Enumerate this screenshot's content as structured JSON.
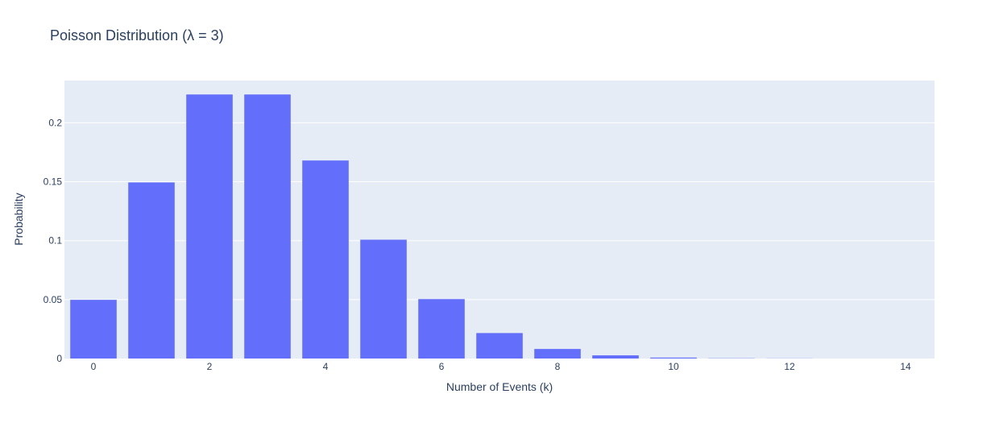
{
  "chart_data": {
    "type": "bar",
    "title": "Poisson Distribution (λ = 3)",
    "xlabel": "Number of Events (k)",
    "ylabel": "Probability",
    "categories": [
      0,
      1,
      2,
      3,
      4,
      5,
      6,
      7,
      8,
      9,
      10,
      11,
      12,
      13,
      14
    ],
    "values": [
      0.0498,
      0.1494,
      0.224,
      0.224,
      0.168,
      0.1008,
      0.0504,
      0.0216,
      0.0081,
      0.0027,
      0.0008,
      0.0002,
      0.0001,
      0.0,
      0.0
    ],
    "xticks": [
      "0",
      "2",
      "4",
      "6",
      "8",
      "10",
      "12",
      "14"
    ],
    "xtick_values": [
      0,
      2,
      4,
      6,
      8,
      10,
      12,
      14
    ],
    "yticks": [
      "0",
      "0.05",
      "0.1",
      "0.15",
      "0.2"
    ],
    "ytick_values": [
      0,
      0.05,
      0.1,
      0.15,
      0.2
    ],
    "xlim": [
      -0.5,
      14.5
    ],
    "ylim": [
      0,
      0.2358
    ],
    "grid": true,
    "legend": "none",
    "colors": {
      "bar": "#636efa",
      "plot_background": "#e5ecf6",
      "grid": "#ffffff",
      "text": "#2a3f5f"
    }
  }
}
